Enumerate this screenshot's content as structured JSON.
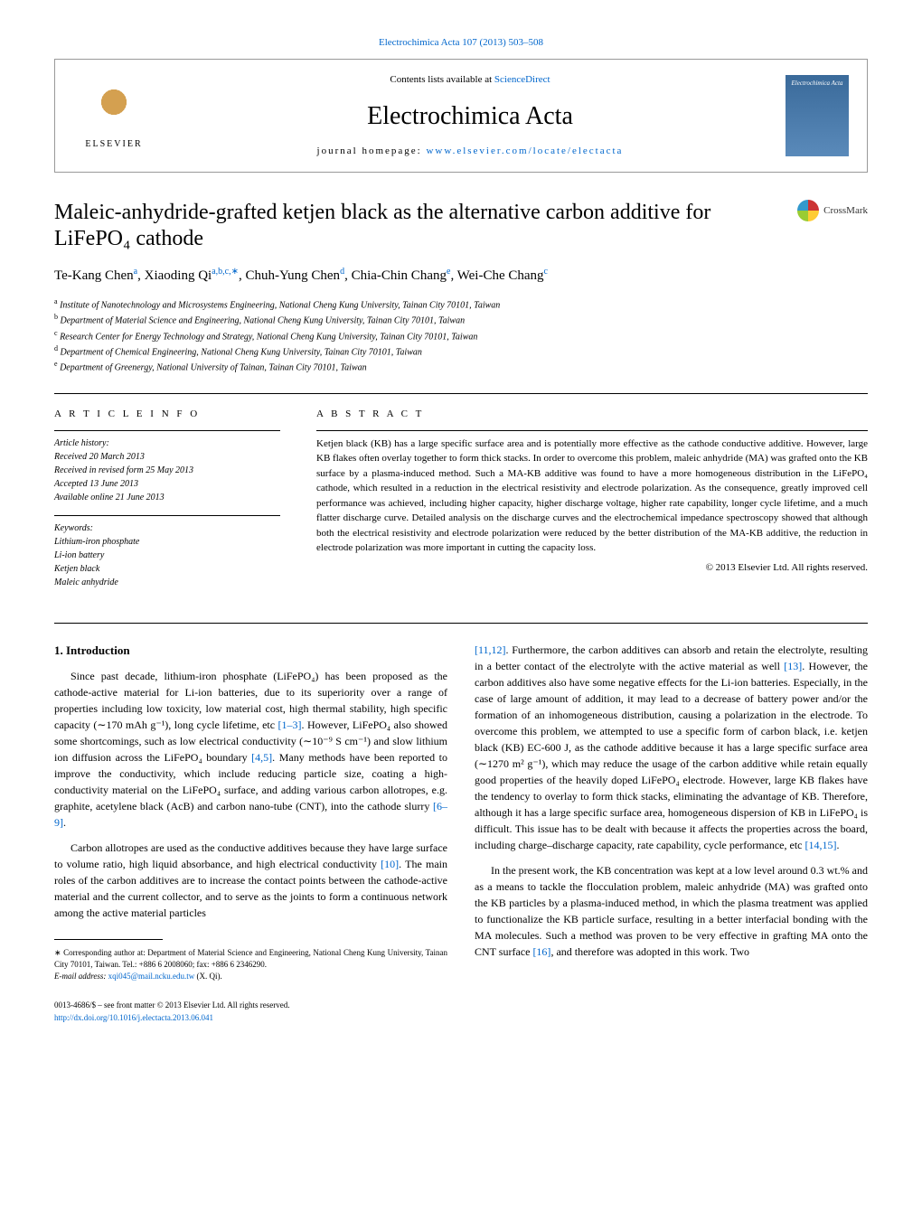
{
  "top_link": "Electrochimica Acta 107 (2013) 503–508",
  "header": {
    "contents_prefix": "Contents lists available at ",
    "contents_link": "ScienceDirect",
    "journal_name": "Electrochimica Acta",
    "homepage_prefix": "journal homepage: ",
    "homepage_link": "www.elsevier.com/locate/electacta",
    "publisher": "ELSEVIER",
    "cover_text": "Electrochimica Acta"
  },
  "crossmark_label": "CrossMark",
  "title": "Maleic-anhydride-grafted ketjen black as the alternative carbon additive for LiFePO₄ cathode",
  "authors_html": "Te-Kang Chen<sup>a</sup>, Xiaoding Qi<sup>a,b,c,∗</sup>, Chuh-Yung Chen<sup>d</sup>, Chia-Chin Chang<sup>e</sup>, Wei-Che Chang<sup>c</sup>",
  "affiliations": [
    {
      "sup": "a",
      "text": "Institute of Nanotechnology and Microsystems Engineering, National Cheng Kung University, Tainan City 70101, Taiwan"
    },
    {
      "sup": "b",
      "text": "Department of Material Science and Engineering, National Cheng Kung University, Tainan City 70101, Taiwan"
    },
    {
      "sup": "c",
      "text": "Research Center for Energy Technology and Strategy, National Cheng Kung University, Tainan City 70101, Taiwan"
    },
    {
      "sup": "d",
      "text": "Department of Chemical Engineering, National Cheng Kung University, Tainan City 70101, Taiwan"
    },
    {
      "sup": "e",
      "text": "Department of Greenergy, National University of Tainan, Tainan City 70101, Taiwan"
    }
  ],
  "article_info": {
    "heading": "A R T I C L E  I N F O",
    "history_label": "Article history:",
    "history": [
      "Received 20 March 2013",
      "Received in revised form 25 May 2013",
      "Accepted 13 June 2013",
      "Available online 21 June 2013"
    ],
    "keywords_label": "Keywords:",
    "keywords": [
      "Lithium-iron phosphate",
      "Li-ion battery",
      "Ketjen black",
      "Maleic anhydride"
    ]
  },
  "abstract": {
    "heading": "A B S T R A C T",
    "text": "Ketjen black (KB) has a large specific surface area and is potentially more effective as the cathode conductive additive. However, large KB flakes often overlay together to form thick stacks. In order to overcome this problem, maleic anhydride (MA) was grafted onto the KB surface by a plasma-induced method. Such a MA-KB additive was found to have a more homogeneous distribution in the LiFePO₄ cathode, which resulted in a reduction in the electrical resistivity and electrode polarization. As the consequence, greatly improved cell performance was achieved, including higher capacity, higher discharge voltage, higher rate capability, longer cycle lifetime, and a much flatter discharge curve. Detailed analysis on the discharge curves and the electrochemical impedance spectroscopy showed that although both the electrical resistivity and electrode polarization were reduced by the better distribution of the MA-KB additive, the reduction in electrode polarization was more important in cutting the capacity loss.",
    "copyright": "© 2013 Elsevier Ltd. All rights reserved."
  },
  "section1": {
    "heading": "1. Introduction",
    "para1_a": "Since past decade, lithium-iron phosphate (LiFePO₄) has been proposed as the cathode-active material for Li-ion batteries, due to its superiority over a range of properties including low toxicity, low material cost, high thermal stability, high specific capacity (∼170 mAh g⁻¹), long cycle lifetime, etc ",
    "ref1": "[1–3]",
    "para1_b": ". However, LiFePO₄ also showed some shortcomings, such as low electrical conductivity (∼10⁻⁹ S cm⁻¹) and slow lithium ion diffusion across the LiFePO₄ boundary ",
    "ref2": "[4,5]",
    "para1_c": ". Many methods have been reported to improve the conductivity, which include reducing particle size, coating a high-conductivity material on the LiFePO₄ surface, and adding various carbon allotropes, e.g. graphite, acetylene black (AcB) and carbon nano-tube (CNT), into the cathode slurry ",
    "ref3": "[6–9]",
    "para1_d": ".",
    "para2_a": "Carbon allotropes are used as the conductive additives because they have large surface to volume ratio, high liquid absorbance, and high electrical conductivity ",
    "ref4": "[10]",
    "para2_b": ". The main roles of the carbon additives are to increase the contact points between the cathode-active material and the current collector, and to serve as the joints to form a continuous network among the active material particles ",
    "ref5": "[11,12]",
    "para2_c": ". Furthermore, the carbon additives can absorb and retain the electrolyte, resulting in a better contact of the electrolyte with the active material as well ",
    "ref6": "[13]",
    "para2_d": ". However, the carbon additives also have some negative effects for the Li-ion batteries. Especially, in the case of large amount of addition, it may lead to a decrease of battery power and/or the formation of an inhomogeneous distribution, causing a polarization in the electrode. To overcome this problem, we attempted to use a specific form of carbon black, i.e. ketjen black (KB) EC-600 J, as the cathode additive because it has a large specific surface area (∼1270 m² g⁻¹), which may reduce the usage of the carbon additive while retain equally good properties of the heavily doped LiFePO₄ electrode. However, large KB flakes have the tendency to overlay to form thick stacks, eliminating the advantage of KB. Therefore, although it has a large specific surface area, homogeneous dispersion of KB in LiFePO₄ is difficult. This issue has to be dealt with because it affects the properties across the board, including charge–discharge capacity, rate capability, cycle performance, etc ",
    "ref7": "[14,15]",
    "para2_e": ".",
    "para3_a": "In the present work, the KB concentration was kept at a low level around 0.3 wt.% and as a means to tackle the flocculation problem, maleic anhydride (MA) was grafted onto the KB particles by a plasma-induced method, in which the plasma treatment was applied to functionalize the KB particle surface, resulting in a better interfacial bonding with the MA molecules. Such a method was proven to be very effective in grafting MA onto the CNT surface ",
    "ref8": "[16]",
    "para3_b": ", and therefore was adopted in this work. Two"
  },
  "footnote": {
    "corresponding": "∗ Corresponding author at: Department of Material Science and Engineering, National Cheng Kung University, Tainan City 70101, Taiwan. Tel.: +886 6 2008060; fax: +886 6 2346290.",
    "email_label": "E-mail address: ",
    "email": "xqi045@mail.ncku.edu.tw",
    "email_suffix": " (X. Qi)."
  },
  "bottom": {
    "line1": "0013-4686/$ – see front matter © 2013 Elsevier Ltd. All rights reserved.",
    "doi": "http://dx.doi.org/10.1016/j.electacta.2013.06.041"
  }
}
